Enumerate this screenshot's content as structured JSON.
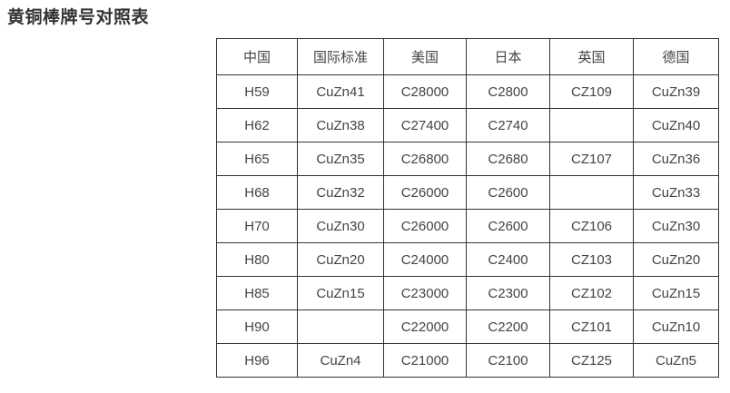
{
  "page": {
    "title": "黄铜棒牌号对照表"
  },
  "colors": {
    "background": "#ffffff",
    "border": "#333333",
    "title_text": "#333333",
    "cell_text": "#444444"
  },
  "table": {
    "headers": [
      "中国",
      "国际标准",
      "美国",
      "日本",
      "英国",
      "德国"
    ],
    "rows": [
      [
        "H59",
        "CuZn41",
        "C28000",
        "C2800",
        "CZ109",
        "CuZn39"
      ],
      [
        "H62",
        "CuZn38",
        "C27400",
        "C2740",
        "",
        "CuZn40"
      ],
      [
        "H65",
        "CuZn35",
        "C26800",
        "C2680",
        "CZ107",
        "CuZn36"
      ],
      [
        "H68",
        "CuZn32",
        "C26000",
        "C2600",
        "",
        "CuZn33"
      ],
      [
        "H70",
        "CuZn30",
        "C26000",
        "C2600",
        "CZ106",
        "CuZn30"
      ],
      [
        "H80",
        "CuZn20",
        "C24000",
        "C2400",
        "CZ103",
        "CuZn20"
      ],
      [
        "H85",
        "CuZn15",
        "C23000",
        "C2300",
        "CZ102",
        "CuZn15"
      ],
      [
        "H90",
        "",
        "C22000",
        "C2200",
        "CZ101",
        "CuZn10"
      ],
      [
        "H96",
        "CuZn4",
        "C21000",
        "C2100",
        "CZ125",
        "CuZn5"
      ]
    ]
  }
}
